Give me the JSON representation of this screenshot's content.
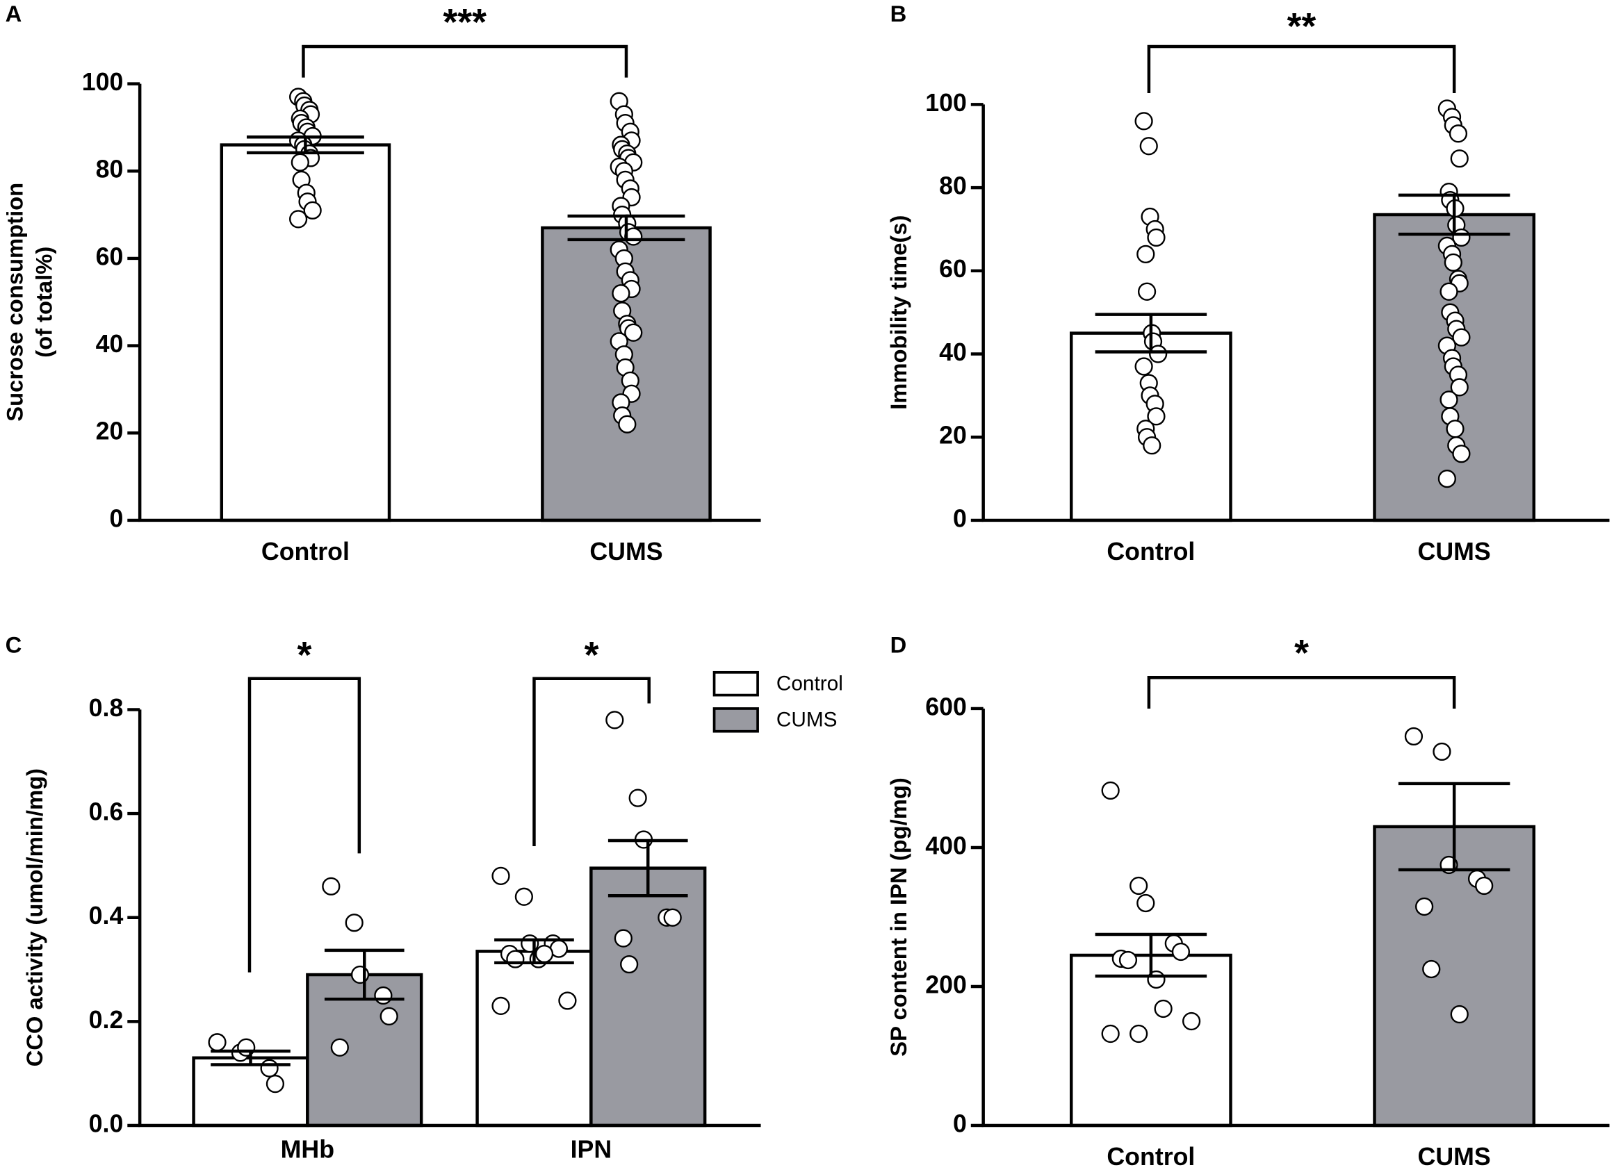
{
  "chart_data": [
    {
      "type": "bar",
      "panel_label": "A",
      "ylabel": [
        "Sucrose consumption",
        "(of total%)"
      ],
      "categories": [
        "Control",
        "CUMS"
      ],
      "values": [
        86,
        67
      ],
      "errors": [
        1.8,
        2.7
      ],
      "colors": [
        "#ffffff",
        "#999aa1"
      ],
      "points": [
        [
          97,
          96,
          95,
          94,
          93,
          92,
          91,
          90,
          89,
          88,
          87,
          86,
          85,
          84,
          83,
          82,
          78,
          75,
          73,
          71,
          69
        ],
        [
          96,
          93,
          91,
          89,
          87,
          86,
          85,
          84,
          83,
          82,
          81,
          80,
          78,
          76,
          74,
          72,
          70,
          68,
          66,
          65,
          62,
          60,
          57,
          55,
          53,
          52,
          48,
          45,
          44,
          43,
          41,
          38,
          35,
          32,
          29,
          27,
          24,
          22
        ]
      ],
      "significance": "***",
      "ylim": [
        0,
        100
      ],
      "yticks": [
        0,
        20,
        40,
        60,
        80,
        100
      ]
    },
    {
      "type": "bar",
      "panel_label": "B",
      "ylabel": [
        "Immobility time(s)"
      ],
      "categories": [
        "Control",
        "CUMS"
      ],
      "values": [
        45,
        73.5
      ],
      "errors": [
        4.5,
        4.7
      ],
      "colors": [
        "#ffffff",
        "#999aa1"
      ],
      "points": [
        [
          96,
          90,
          73,
          70,
          68,
          64,
          55,
          45,
          43,
          40,
          37,
          33,
          30,
          28,
          25,
          22,
          20,
          18
        ],
        [
          99,
          97,
          95,
          93,
          87,
          79,
          77,
          75,
          71,
          68,
          66,
          64,
          62,
          58,
          57,
          55,
          50,
          48,
          46,
          44,
          42,
          39,
          37,
          35,
          32,
          29,
          25,
          22,
          18,
          16,
          10
        ]
      ],
      "significance": "**",
      "ylim": [
        0,
        100
      ],
      "yticks": [
        0,
        20,
        40,
        60,
        80,
        100
      ]
    },
    {
      "type": "grouped_bar",
      "panel_label": "C",
      "ylabel": [
        "CCO activity (umol/min/mg)"
      ],
      "categories": [
        "MHb",
        "IPN"
      ],
      "series": [
        {
          "name": "Control",
          "color": "#ffffff",
          "values": [
            0.13,
            0.335
          ],
          "errors": [
            0.013,
            0.022
          ],
          "points": [
            [
              0.16,
              0.14,
              0.15,
              0.11,
              0.08
            ],
            [
              0.48,
              0.44,
              0.35,
              0.35,
              0.34,
              0.33,
              0.32,
              0.32,
              0.33,
              0.24,
              0.23
            ]
          ]
        },
        {
          "name": "CUMS",
          "color": "#999aa1",
          "values": [
            0.29,
            0.495
          ],
          "errors": [
            0.047,
            0.053
          ],
          "points": [
            [
              0.46,
              0.39,
              0.29,
              0.25,
              0.21,
              0.15
            ],
            [
              0.78,
              0.63,
              0.55,
              0.4,
              0.4,
              0.36,
              0.31
            ]
          ]
        }
      ],
      "significance": [
        "*",
        "*"
      ],
      "legend": "top-right",
      "ylim": [
        0,
        0.8
      ],
      "yticks": [
        {
          "value": 0,
          "label": "0.0"
        },
        0.2,
        0.4,
        0.6,
        0.8
      ]
    },
    {
      "type": "bar",
      "panel_label": "D",
      "ylabel": [
        "SP content in IPN (pg/mg)"
      ],
      "categories": [
        "Control",
        "CUMS"
      ],
      "values": [
        245,
        430
      ],
      "errors": [
        30,
        62
      ],
      "colors": [
        "#ffffff",
        "#999aa1"
      ],
      "points": [
        [
          482,
          345,
          320,
          262,
          250,
          240,
          238,
          210,
          168,
          150,
          132,
          132
        ],
        [
          560,
          538,
          375,
          355,
          345,
          315,
          225,
          160
        ]
      ],
      "significance": "*",
      "ylim": [
        0,
        600
      ],
      "yticks": [
        0,
        200,
        400,
        600
      ]
    }
  ]
}
